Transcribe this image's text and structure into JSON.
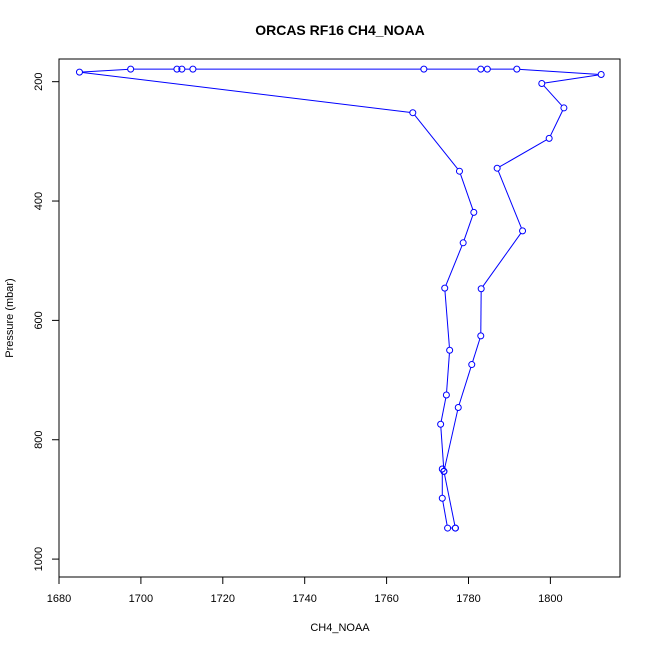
{
  "chart_data": {
    "type": "line",
    "title": "ORCAS RF16 CH4_NOAA",
    "xlabel": "CH4_NOAA",
    "ylabel": "Pressure (mbar)",
    "xlim": [
      1680,
      1817
    ],
    "ylim": [
      1030,
      162
    ],
    "y_reversed": true,
    "xticks": [
      1680,
      1700,
      1720,
      1740,
      1760,
      1780,
      1800
    ],
    "yticks": [
      200,
      400,
      600,
      800,
      1000
    ],
    "grid": false,
    "series_color": "#0000ff",
    "points": [
      {
        "x": 1776.8,
        "y": 948
      },
      {
        "x": 1774.9,
        "y": 948
      },
      {
        "x": 1773.6,
        "y": 898
      },
      {
        "x": 1773.6,
        "y": 849
      },
      {
        "x": 1774.0,
        "y": 853
      },
      {
        "x": 1773.2,
        "y": 774
      },
      {
        "x": 1774.6,
        "y": 725
      },
      {
        "x": 1775.4,
        "y": 650
      },
      {
        "x": 1774.2,
        "y": 546
      },
      {
        "x": 1778.7,
        "y": 470
      },
      {
        "x": 1781.3,
        "y": 419
      },
      {
        "x": 1777.8,
        "y": 350
      },
      {
        "x": 1766.4,
        "y": 252
      },
      {
        "x": 1685.0,
        "y": 184
      },
      {
        "x": 1697.5,
        "y": 179
      },
      {
        "x": 1708.8,
        "y": 179
      },
      {
        "x": 1710.0,
        "y": 179
      },
      {
        "x": 1712.7,
        "y": 179
      },
      {
        "x": 1769.1,
        "y": 179
      },
      {
        "x": 1783.0,
        "y": 179
      },
      {
        "x": 1784.6,
        "y": 179
      },
      {
        "x": 1791.8,
        "y": 179
      },
      {
        "x": 1812.4,
        "y": 188
      },
      {
        "x": 1797.9,
        "y": 203
      },
      {
        "x": 1803.3,
        "y": 244
      },
      {
        "x": 1799.7,
        "y": 295
      },
      {
        "x": 1787.0,
        "y": 345
      },
      {
        "x": 1793.2,
        "y": 450
      },
      {
        "x": 1783.1,
        "y": 547
      },
      {
        "x": 1783.0,
        "y": 626
      },
      {
        "x": 1780.8,
        "y": 674
      },
      {
        "x": 1777.5,
        "y": 746
      },
      {
        "x": 1774.0,
        "y": 853
      },
      {
        "x": 1776.8,
        "y": 948
      }
    ]
  }
}
